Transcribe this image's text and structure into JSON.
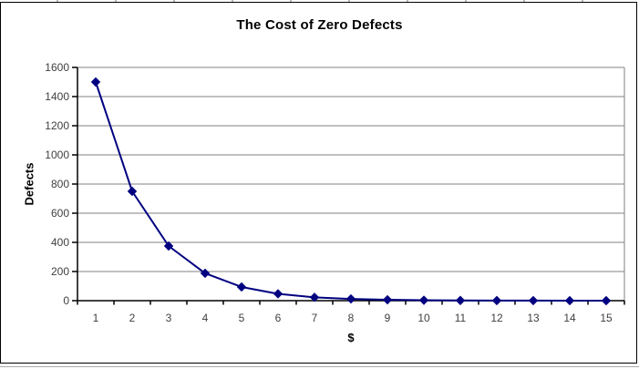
{
  "chart_data": {
    "type": "line",
    "title": "The Cost of Zero Defects",
    "xlabel": "$",
    "ylabel": "Defects",
    "series_name": "Defects",
    "categories": [
      "1",
      "2",
      "3",
      "4",
      "5",
      "6",
      "7",
      "8",
      "9",
      "10",
      "11",
      "12",
      "13",
      "14",
      "15"
    ],
    "values": [
      1500,
      750,
      375,
      188,
      94,
      47,
      23,
      12,
      6,
      3,
      1.5,
      0.8,
      0.4,
      0.2,
      0.1
    ],
    "ylim": [
      0,
      1600
    ],
    "y_ticks": [
      0,
      200,
      400,
      600,
      800,
      1000,
      1200,
      1400,
      1600
    ],
    "grid": "horizontal",
    "legend": "none",
    "marker": "diamond",
    "colors": {
      "series": "#000080",
      "gridline": "#808080",
      "axis": "#000000",
      "tick_label": "#404040",
      "title": "#000000",
      "background": "#ffffff"
    }
  }
}
